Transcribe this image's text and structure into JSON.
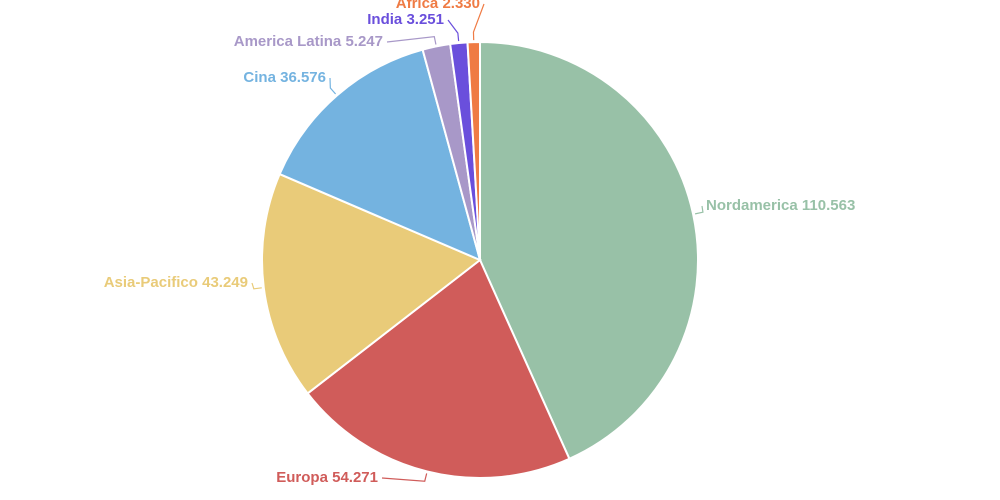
{
  "chart_data": {
    "type": "pie",
    "categories": [
      "Nordamerica",
      "Europa",
      "Asia-Pacifico",
      "Cina",
      "America Latina",
      "India",
      "Africa"
    ],
    "values": [
      110.563,
      54.271,
      43.249,
      36.576,
      5.247,
      3.251,
      2.33
    ],
    "value_labels": [
      "110.563",
      "54.271",
      "43.249",
      "36.576",
      "5.247",
      "3.251",
      "2.330"
    ],
    "colors": [
      "#98c1a7",
      "#d05c5a",
      "#e9cb79",
      "#74b3e0",
      "#a898c8",
      "#6a4fdc",
      "#ef7b44"
    ]
  }
}
